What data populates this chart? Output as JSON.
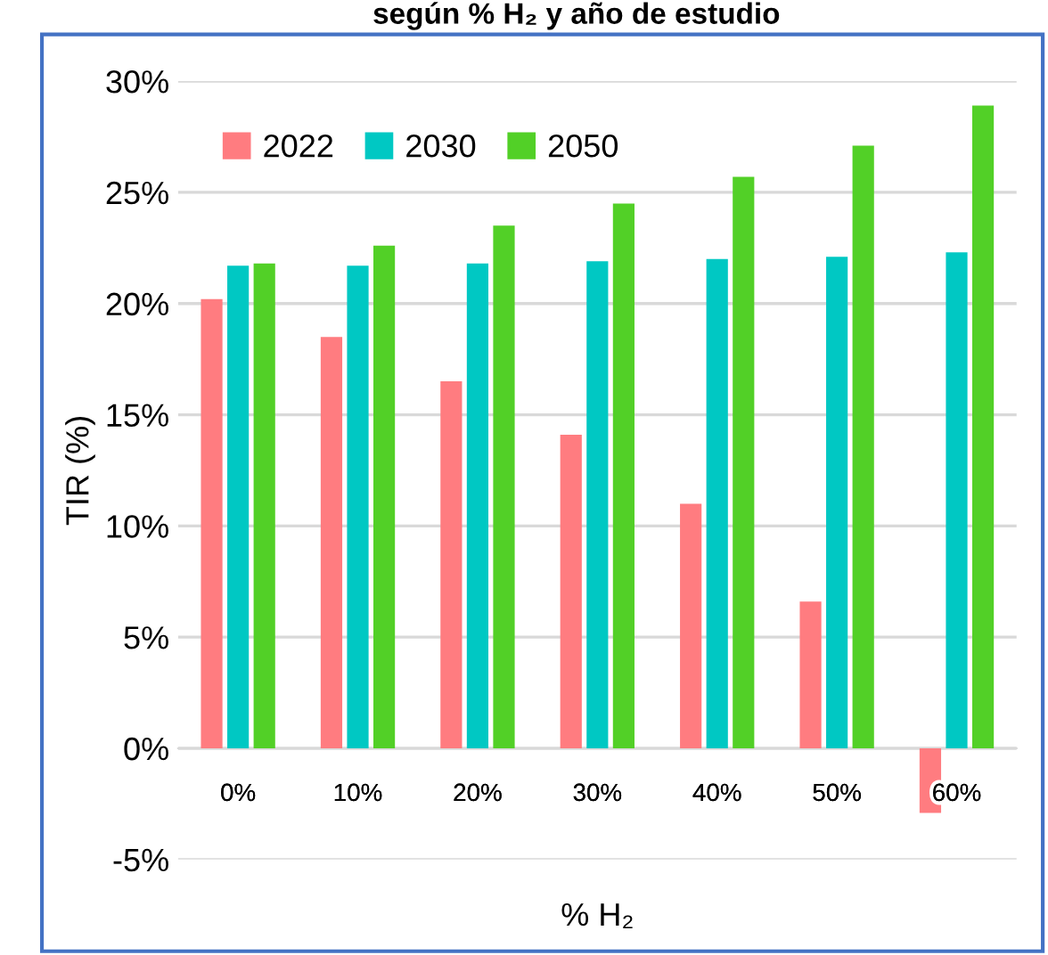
{
  "chart_data": {
    "type": "bar",
    "title": "según % H₂ y año de estudio",
    "xlabel": "% H₂",
    "ylabel": "TIR (%)",
    "categories": [
      "0%",
      "10%",
      "20%",
      "30%",
      "40%",
      "50%",
      "60%"
    ],
    "series": [
      {
        "name": "2022",
        "color": "#ff7c80",
        "values": [
          20.2,
          18.5,
          16.5,
          14.1,
          11.0,
          6.6,
          -2.9
        ]
      },
      {
        "name": "2030",
        "color": "#00c8c3",
        "values": [
          21.7,
          21.7,
          21.8,
          21.9,
          22.0,
          22.1,
          22.3
        ]
      },
      {
        "name": "2050",
        "color": "#52d027",
        "values": [
          21.8,
          22.6,
          23.5,
          24.5,
          25.7,
          27.1,
          28.9
        ]
      }
    ],
    "ylim": [
      -5,
      30
    ],
    "yticks": [
      {
        "value": -5,
        "label": "-5%"
      },
      {
        "value": 0,
        "label": "0%"
      },
      {
        "value": 5,
        "label": "5%"
      },
      {
        "value": 10,
        "label": "10%"
      },
      {
        "value": 15,
        "label": "15%"
      },
      {
        "value": 20,
        "label": "20%"
      },
      {
        "value": 25,
        "label": "25%"
      },
      {
        "value": 30,
        "label": "30%"
      }
    ],
    "grid": "y",
    "legend": "top left"
  }
}
